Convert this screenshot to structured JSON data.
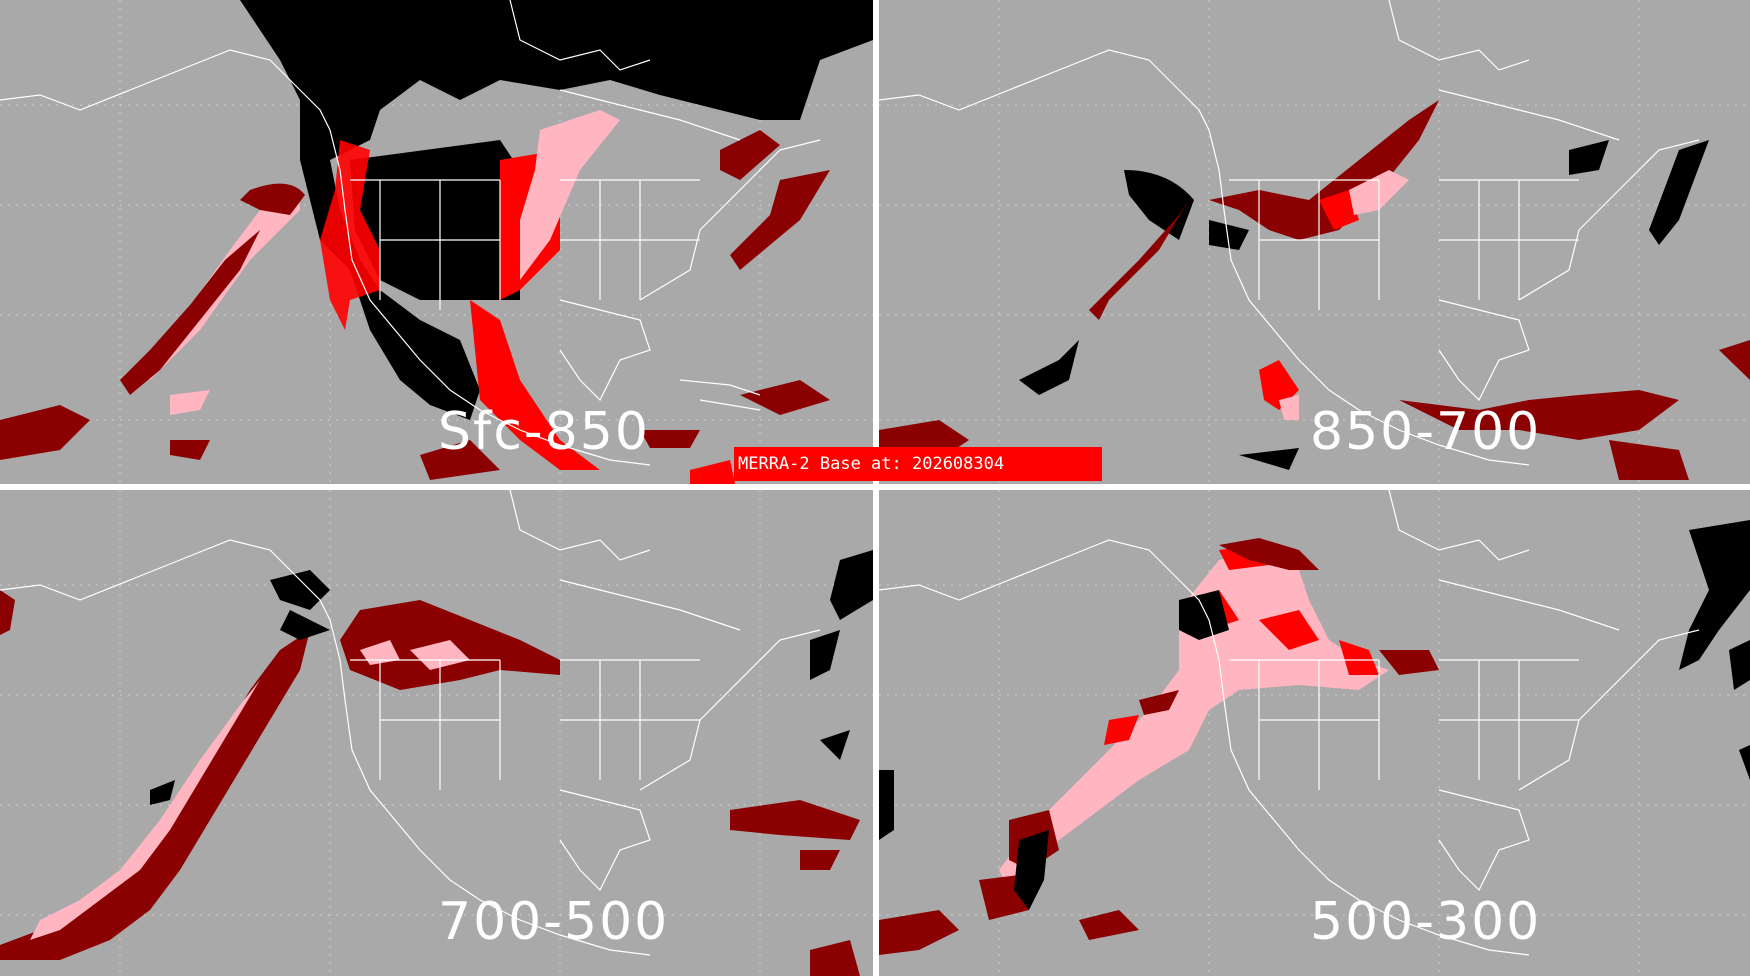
{
  "base_label": "MERRA-2 Base at: 202608304",
  "panels": [
    {
      "layer": "Sfc-850"
    },
    {
      "layer": "850-700"
    },
    {
      "layer": "700-500"
    },
    {
      "layer": "500-300"
    }
  ],
  "colors": {
    "background": "#a9a9a9",
    "coastline": "#ffffff",
    "black_category": "#000000",
    "dark_red_category": "#8b0000",
    "red_category": "#ff0000",
    "pink_category": "#ffb6c1"
  }
}
